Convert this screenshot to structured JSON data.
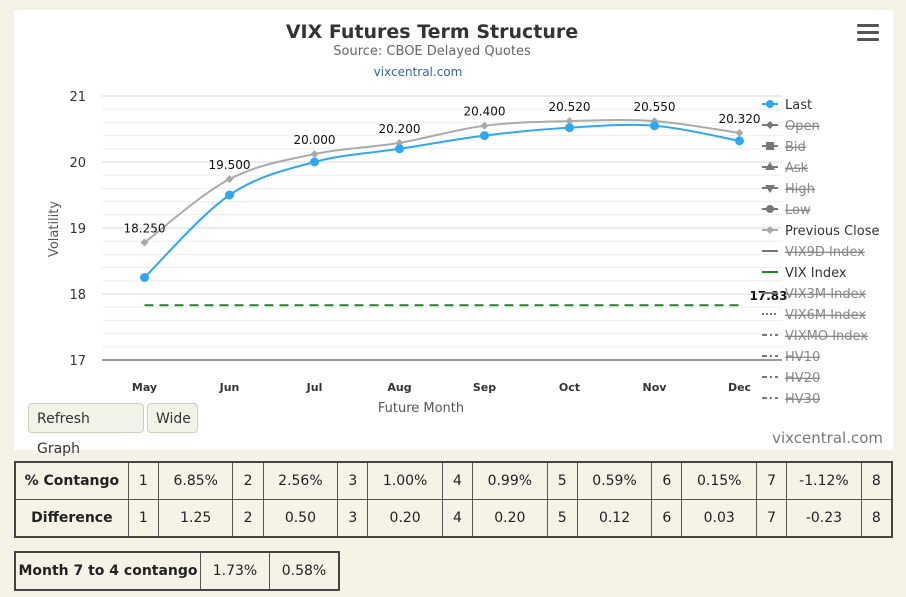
{
  "chart_data": {
    "type": "line",
    "title": "VIX Futures Term Structure",
    "subtitle": "Source: CBOE Delayed Quotes",
    "link": "vixcentral.com",
    "xlabel": "Future Month",
    "ylabel": "Volatility",
    "categories": [
      "May",
      "Jun",
      "Jul",
      "Aug",
      "Sep",
      "Oct",
      "Nov",
      "Dec"
    ],
    "ylim": [
      17,
      21
    ],
    "yticks": [
      17,
      18,
      19,
      20,
      21
    ],
    "grid": true,
    "legend_position": "right",
    "series": [
      {
        "name": "Last",
        "values": [
          18.25,
          19.5,
          20.0,
          20.2,
          20.4,
          20.52,
          20.55,
          20.32
        ],
        "labels": [
          "18.250",
          "19.500",
          "20.000",
          "20.200",
          "20.400",
          "20.520",
          "20.550",
          "20.320"
        ],
        "color": "#2fa8f0",
        "visible": true
      },
      {
        "name": "Previous Close",
        "values": [
          18.78,
          19.74,
          20.12,
          20.29,
          20.55,
          20.62,
          20.62,
          20.44
        ],
        "color": "#aaaaaa",
        "visible": true
      },
      {
        "name": "VIX Index",
        "value": 17.83,
        "value_label": "17.83",
        "color": "#1a8a1a",
        "style": "dashed",
        "visible": true
      }
    ],
    "legend": [
      {
        "name": "Last",
        "hidden": false,
        "marker": "circle",
        "color": "#2fa8f0"
      },
      {
        "name": "Open",
        "hidden": true,
        "marker": "diamond",
        "color": "#666666"
      },
      {
        "name": "Bid",
        "hidden": true,
        "marker": "square",
        "color": "#666666"
      },
      {
        "name": "Ask",
        "hidden": true,
        "marker": "triangle",
        "color": "#666666"
      },
      {
        "name": "High",
        "hidden": true,
        "marker": "triangle-down",
        "color": "#666666"
      },
      {
        "name": "Low",
        "hidden": true,
        "marker": "circle",
        "color": "#666666"
      },
      {
        "name": "Previous Close",
        "hidden": false,
        "marker": "diamond",
        "color": "#aaaaaa"
      },
      {
        "name": "VIX9D Index",
        "hidden": true,
        "marker": "line",
        "color": "#666666"
      },
      {
        "name": "VIX Index",
        "hidden": false,
        "marker": "line",
        "color": "#1a8a1a"
      },
      {
        "name": "VIX3M Index",
        "hidden": true,
        "marker": "line",
        "color": "#666666"
      },
      {
        "name": "VIX6M Index",
        "hidden": true,
        "marker": "dotted",
        "color": "#666666"
      },
      {
        "name": "VIXMO Index",
        "hidden": true,
        "marker": "dashdot",
        "color": "#666666"
      },
      {
        "name": "HV10",
        "hidden": true,
        "marker": "dashdot",
        "color": "#666666"
      },
      {
        "name": "HV20",
        "hidden": true,
        "marker": "dashdot",
        "color": "#666666"
      },
      {
        "name": "HV30",
        "hidden": true,
        "marker": "dashdot",
        "color": "#666666"
      }
    ]
  },
  "buttons": {
    "refresh": "Refresh Graph",
    "wide": "Wide"
  },
  "watermark": "vixcentral.com",
  "contango_table": {
    "rows": [
      {
        "label": "% Contango",
        "cells": [
          "1",
          "6.85%",
          "2",
          "2.56%",
          "3",
          "1.00%",
          "4",
          "0.99%",
          "5",
          "0.59%",
          "6",
          "0.15%",
          "7",
          "-1.12%",
          "8"
        ]
      },
      {
        "label": "Difference",
        "cells": [
          "1",
          "1.25",
          "2",
          "0.50",
          "3",
          "0.20",
          "4",
          "0.20",
          "5",
          "0.12",
          "6",
          "0.03",
          "7",
          "-0.23",
          "8"
        ]
      }
    ]
  },
  "month_table": {
    "label": "Month 7 to 4 contango",
    "values": [
      "1.73%",
      "0.58%"
    ]
  }
}
